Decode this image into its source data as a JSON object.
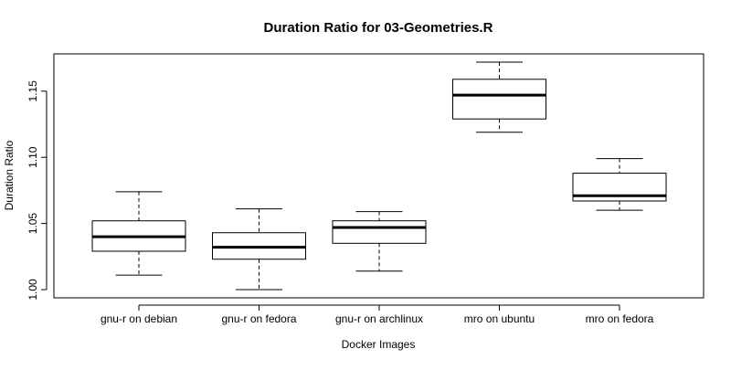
{
  "chart_data": {
    "type": "box",
    "title": "Duration Ratio for 03-Geometries.R",
    "xlabel": "Docker Images",
    "ylabel": "Duration Ratio",
    "ylim": [
      0.993,
      1.18
    ],
    "yticks": [
      1.0,
      1.05,
      1.1,
      1.15
    ],
    "ytick_labels": [
      "1.00",
      "1.05",
      "1.10",
      "1.15"
    ],
    "categories": [
      "gnu-r on debian",
      "gnu-r on fedora",
      "gnu-r on archlinux",
      "mro on ubuntu",
      "mro on fedora"
    ],
    "boxes": [
      {
        "min": 1.011,
        "q1": 1.029,
        "median": 1.04,
        "q3": 1.052,
        "max": 1.074
      },
      {
        "min": 1.0,
        "q1": 1.023,
        "median": 1.032,
        "q3": 1.043,
        "max": 1.061
      },
      {
        "min": 1.014,
        "q1": 1.035,
        "median": 1.047,
        "q3": 1.052,
        "max": 1.059
      },
      {
        "min": 1.119,
        "q1": 1.129,
        "median": 1.147,
        "q3": 1.159,
        "max": 1.172
      },
      {
        "min": 1.06,
        "q1": 1.067,
        "median": 1.071,
        "q3": 1.088,
        "max": 1.099
      }
    ],
    "grid": false,
    "legend": "none"
  }
}
